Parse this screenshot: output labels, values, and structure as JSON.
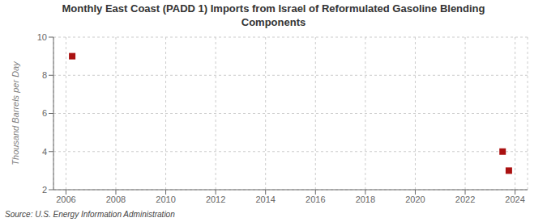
{
  "chart_data": {
    "type": "scatter",
    "title": "Monthly East Coast (PADD 1) Imports from Israel of Reformulated Gasoline Blending\nComponents",
    "ylabel": "Thousand Barrels per Day",
    "annotations": [
      "Source: U.S. Energy Information Administration"
    ],
    "x": [
      2006.25,
      2023.5,
      2023.75
    ],
    "values": [
      9.0,
      4.0,
      3.0
    ],
    "color": "#aa1111",
    "marker": "square",
    "xlim": [
      2005.5,
      2024.5
    ],
    "ylim": [
      2,
      10
    ],
    "xticks": [
      2006,
      2008,
      2010,
      2012,
      2014,
      2016,
      2018,
      2020,
      2022,
      2024
    ],
    "yticks": [
      2,
      4,
      6,
      8,
      10
    ],
    "grid": true
  }
}
